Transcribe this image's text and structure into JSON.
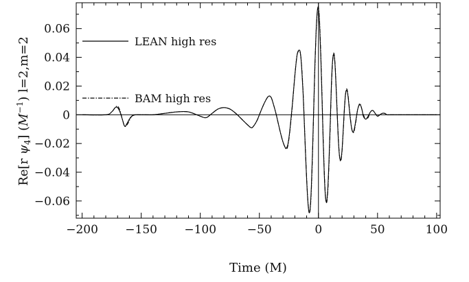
{
  "chart_data": {
    "type": "line",
    "title": "",
    "xlabel": "Time (M)",
    "ylabel": "Re[r ψ4] (M⁻¹) l=2,m=2",
    "ylabel_parts": {
      "pre": "Re[r ",
      "psi": "ψ",
      "psi_sub": "4",
      "mid": "] (",
      "m": "M",
      "sup": "−1",
      "post": ") l=2,m=2"
    },
    "xlim": [
      -205,
      103
    ],
    "ylim": [
      -0.072,
      0.078
    ],
    "xticks": [
      -200,
      -150,
      -100,
      -50,
      0,
      50,
      100
    ],
    "xtick_labels": [
      "−200",
      "−150",
      "−100",
      "−50",
      "0",
      "50",
      "100"
    ],
    "yticks": [
      -0.06,
      -0.04,
      -0.02,
      0,
      0.02,
      0.04,
      0.06
    ],
    "ytick_labels": [
      "−0.06",
      "−0.04",
      "−0.02",
      "0",
      "0.02",
      "0.04",
      "0.06"
    ],
    "grid": false,
    "reference_lines": {
      "y": 0,
      "x": 0
    },
    "legend_position": "left",
    "legend": [
      "LEAN high res",
      "BAM high res"
    ],
    "series": [
      {
        "name": "LEAN high res",
        "style": "solid",
        "x": [
          -200,
          -180,
          -175,
          -172,
          -170,
          -168,
          -166,
          -164,
          -162,
          -160,
          -158,
          -155,
          -150,
          -140,
          -130,
          -120,
          -110,
          -100,
          -95,
          -90,
          -85,
          -80,
          -75,
          -70,
          -65,
          -60,
          -57,
          -55,
          -52,
          -50,
          -47,
          -44,
          -42,
          -40,
          -38,
          -36,
          -34,
          -32,
          -30,
          -28,
          -27,
          -26,
          -25,
          -24,
          -22,
          -20,
          -18,
          -16,
          -15,
          -14,
          -13,
          -12,
          -11,
          -10,
          -9,
          -8,
          -7,
          -6,
          -5,
          -4,
          -3,
          -2,
          -1,
          0,
          1,
          2,
          3,
          4,
          5,
          6,
          7,
          8,
          9,
          10,
          11,
          12,
          13,
          14,
          15,
          16,
          17,
          18,
          19,
          20,
          21,
          22,
          23,
          24,
          25,
          26,
          27,
          28,
          29,
          30,
          31,
          32,
          33,
          34,
          35,
          36,
          37,
          38,
          40,
          42,
          44,
          46,
          48,
          50,
          52,
          54,
          56,
          58,
          60,
          65,
          70,
          80,
          90,
          100
        ],
        "y": [
          0,
          0,
          0.002,
          0.005,
          0.005,
          0.002,
          -0.003,
          -0.008,
          -0.006,
          -0.003,
          -0.001,
          0,
          0,
          0,
          0.001,
          0.002,
          0.002,
          -0.001,
          -0.002,
          0.001,
          0.004,
          0.005,
          0.004,
          0.001,
          -0.003,
          -0.007,
          -0.009,
          -0.008,
          -0.004,
          0,
          0.006,
          0.011,
          0.013,
          0.012,
          0.007,
          0.001,
          -0.006,
          -0.013,
          -0.019,
          -0.023,
          -0.023,
          -0.021,
          -0.016,
          -0.009,
          0.008,
          0.027,
          0.042,
          0.045,
          0.041,
          0.03,
          0.015,
          -0.005,
          -0.026,
          -0.045,
          -0.06,
          -0.068,
          -0.065,
          -0.05,
          -0.025,
          0.005,
          0.035,
          0.058,
          0.072,
          0.074,
          0.062,
          0.04,
          0.012,
          -0.018,
          -0.043,
          -0.058,
          -0.06,
          -0.05,
          -0.03,
          -0.005,
          0.022,
          0.038,
          0.042,
          0.035,
          0.018,
          -0.002,
          -0.02,
          -0.03,
          -0.031,
          -0.024,
          -0.01,
          0.005,
          0.015,
          0.017,
          0.013,
          0.005,
          -0.003,
          -0.009,
          -0.012,
          -0.011,
          -0.007,
          -0.002,
          0.003,
          0.006,
          0.007,
          0.006,
          0.003,
          -0.001,
          -0.003,
          -0.001,
          0.002,
          0.003,
          0.001,
          -0.001,
          0,
          0.001,
          0.001,
          0,
          0,
          0,
          0,
          0,
          0,
          0
        ]
      },
      {
        "name": "BAM high res",
        "style": "dash-dot",
        "x": [
          -200,
          -180,
          -175,
          -172,
          -170,
          -168,
          -166,
          -164,
          -162,
          -160,
          -158,
          -155,
          -150,
          -140,
          -130,
          -120,
          -110,
          -100,
          -95,
          -90,
          -85,
          -80,
          -75,
          -70,
          -65,
          -60,
          -57,
          -55,
          -52,
          -50,
          -47,
          -44,
          -42,
          -40,
          -38,
          -36,
          -34,
          -32,
          -30,
          -28,
          -27,
          -26,
          -25,
          -24,
          -22,
          -20,
          -18,
          -16,
          -15,
          -14,
          -13,
          -12,
          -11,
          -10,
          -9,
          -8,
          -7,
          -6,
          -5,
          -4,
          -3,
          -2,
          -1,
          0,
          1,
          2,
          3,
          4,
          5,
          6,
          7,
          8,
          9,
          10,
          11,
          12,
          13,
          14,
          15,
          16,
          17,
          18,
          19,
          20,
          21,
          22,
          23,
          24,
          25,
          26,
          27,
          28,
          29,
          30,
          31,
          32,
          33,
          34,
          35,
          36,
          37,
          38,
          40,
          42,
          44,
          46,
          48,
          50,
          52,
          54,
          56,
          58,
          60,
          65,
          70,
          80,
          90,
          100
        ],
        "y": [
          0,
          0,
          0.002,
          0.005,
          0.006,
          0.003,
          -0.003,
          -0.008,
          -0.007,
          -0.004,
          -0.001,
          0,
          0,
          0,
          0.001,
          0.002,
          0.002,
          -0.001,
          -0.002,
          0.001,
          0.004,
          0.005,
          0.004,
          0.001,
          -0.003,
          -0.007,
          -0.009,
          -0.008,
          -0.004,
          0,
          0.006,
          0.011,
          0.013,
          0.012,
          0.007,
          0.001,
          -0.006,
          -0.013,
          -0.019,
          -0.023,
          -0.024,
          -0.022,
          -0.017,
          -0.01,
          0.007,
          0.027,
          0.042,
          0.044,
          0.041,
          0.031,
          0.016,
          -0.004,
          -0.025,
          -0.044,
          -0.059,
          -0.067,
          -0.066,
          -0.052,
          -0.027,
          0.003,
          0.033,
          0.057,
          0.071,
          0.075,
          0.064,
          0.042,
          0.014,
          -0.016,
          -0.041,
          -0.057,
          -0.061,
          -0.052,
          -0.032,
          -0.007,
          0.02,
          0.037,
          0.043,
          0.036,
          0.019,
          -0.001,
          -0.019,
          -0.03,
          -0.032,
          -0.025,
          -0.011,
          0.004,
          0.015,
          0.018,
          0.014,
          0.006,
          -0.002,
          -0.009,
          -0.012,
          -0.012,
          -0.008,
          -0.003,
          0.003,
          0.006,
          0.008,
          0.006,
          0.003,
          0,
          -0.003,
          -0.002,
          0.002,
          0.003,
          0.001,
          -0.001,
          0,
          0.001,
          0.001,
          0,
          0,
          0,
          0,
          0,
          0,
          0
        ]
      }
    ]
  }
}
